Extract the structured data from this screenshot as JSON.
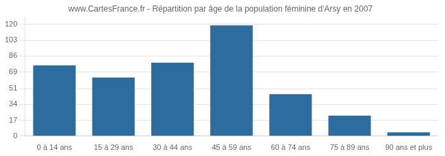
{
  "chart_data": {
    "type": "bar",
    "title": "www.CartesFrance.fr - Répartition par âge de la population féminine d'Arsy en 2007",
    "categories": [
      "0 à 14 ans",
      "15 à 29 ans",
      "30 à 44 ans",
      "45 à 59 ans",
      "60 à 74 ans",
      "75 à 89 ans",
      "90 ans et plus"
    ],
    "values": [
      76,
      63,
      79,
      119,
      45,
      22,
      4
    ],
    "color": "#2e6b9e",
    "ylim": [
      0,
      127
    ],
    "yticks": [
      0,
      17,
      34,
      51,
      69,
      86,
      103,
      120
    ],
    "grid": true
  }
}
